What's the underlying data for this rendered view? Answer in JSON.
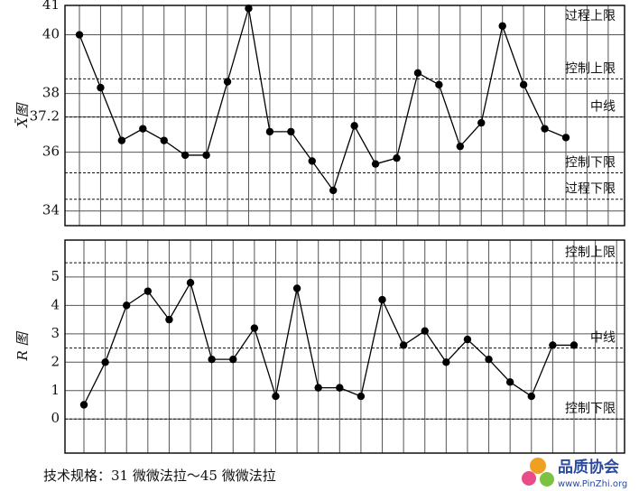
{
  "chart_data": [
    {
      "type": "line",
      "ylabel": "X̄图",
      "categories": [
        null,
        null,
        null,
        null,
        null,
        null,
        null,
        null,
        null,
        null,
        null,
        null,
        null,
        null,
        null,
        null,
        null,
        null,
        null,
        null,
        null,
        null,
        null,
        null
      ],
      "series": [
        {
          "color": "#000000",
          "values": [
            40,
            38.2,
            36.4,
            36.8,
            36.4,
            35.9,
            35.9,
            38.4,
            40.9,
            36.7,
            36.7,
            35.7,
            34.7,
            36.9,
            35.6,
            35.8,
            38.7,
            38.3,
            36.2,
            37.0,
            40.3,
            38.3,
            36.8,
            36.5
          ]
        }
      ],
      "ylim": [
        33.5,
        41
      ],
      "yticks": [
        34,
        36,
        37.2,
        38,
        40,
        41
      ],
      "grid": true,
      "reference_lines": [
        {
          "label": "过程上限",
          "value": 41
        },
        {
          "label": "控制上限",
          "value": 38.5
        },
        {
          "label": "中线",
          "value": 37.2
        },
        {
          "label": "控制下限",
          "value": 35.3
        },
        {
          "label": "过程下限",
          "value": 34.4
        }
      ]
    },
    {
      "type": "line",
      "ylabel": "R 图",
      "categories": [
        null,
        null,
        null,
        null,
        null,
        null,
        null,
        null,
        null,
        null,
        null,
        null,
        null,
        null,
        null,
        null,
        null,
        null,
        null,
        null,
        null,
        null,
        null,
        null
      ],
      "series": [
        {
          "color": "#000000",
          "values": [
            0.5,
            2.0,
            4.0,
            4.5,
            3.5,
            4.8,
            2.1,
            2.1,
            3.2,
            0.8,
            4.6,
            1.1,
            1.1,
            0.8,
            4.2,
            2.6,
            3.1,
            2.0,
            2.8,
            2.1,
            1.3,
            0.8,
            2.6,
            2.6
          ]
        }
      ],
      "ylim": [
        -1.2,
        6.3
      ],
      "yticks": [
        0,
        1,
        2,
        3,
        4,
        5
      ],
      "grid": true,
      "reference_lines": [
        {
          "label": "控制上限",
          "value": 5.5
        },
        {
          "label": "中线",
          "value": 2.5
        },
        {
          "label": "控制下限",
          "value": 0
        }
      ]
    }
  ],
  "footer": "技术规格：31 微微法拉～45 微微法拉",
  "logo": {
    "name": "品质协会",
    "url": "www.PinZhi.org"
  }
}
